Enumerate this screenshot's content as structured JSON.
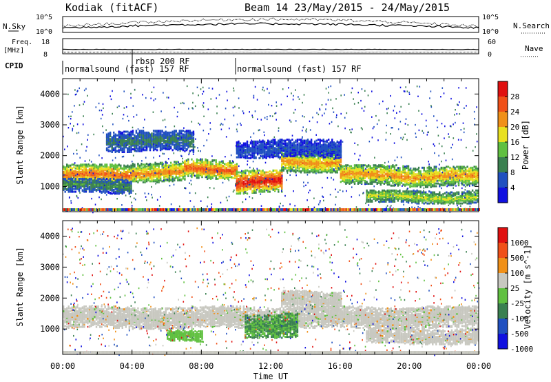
{
  "header": {
    "station": "Kodiak (fitACF)",
    "beam_date": "Beam 14 23/May/2015 - 24/May/2015"
  },
  "top_panels": {
    "nsky_label": "N.Sky",
    "nsky_ticks": [
      "10^5",
      "10^0"
    ],
    "nsearch_label": "N.Search",
    "nsearch_ticks": [
      "10^5",
      "10^0"
    ],
    "freq_label_1": "Freq.",
    "freq_label_2": "[MHz]",
    "freq_ticks": [
      "18",
      "8"
    ],
    "nave_label": "Nave",
    "nave_ticks": [
      "60",
      "0"
    ],
    "cpid_label": "CPID",
    "cpid_segments": [
      {
        "label": "normalsound (fast) 157 RF",
        "start_hour": 0
      },
      {
        "label": "rbsp 200 RF",
        "start_hour": 4
      },
      {
        "label": "normalsound (fast) 157 RF",
        "start_hour": 10
      }
    ]
  },
  "chart_data": [
    {
      "type": "heatmap",
      "name": "Power",
      "ylabel": "Slant Range [km]",
      "xlabel": "Time UT",
      "x_ticks": [
        "00:00",
        "04:00",
        "08:00",
        "12:00",
        "16:00",
        "20:00",
        "00:00"
      ],
      "x_range_hours": [
        0,
        24
      ],
      "y_ticks": [
        1000,
        2000,
        3000,
        4000
      ],
      "ylim": [
        180,
        4500
      ],
      "colorbar": {
        "label": "Power [dB]",
        "ticks": [
          "28",
          "24",
          "20",
          "16",
          "12",
          "8",
          "4"
        ],
        "colors": [
          "#1010e0",
          "#2050c0",
          "#3a8050",
          "#60c040",
          "#e8e020",
          "#f09018",
          "#f05018",
          "#e01010"
        ]
      },
      "bands": [
        {
          "start": 0,
          "end": 4,
          "center": 1400,
          "width": 350,
          "level": 0.78
        },
        {
          "start": 4,
          "end": 7,
          "center": 1500,
          "width": 330,
          "level": 0.74
        },
        {
          "start": 7,
          "end": 10,
          "center": 1600,
          "width": 320,
          "level": 0.82
        },
        {
          "start": 10,
          "end": 12.6,
          "center": 1180,
          "width": 380,
          "level": 0.96
        },
        {
          "start": 12.6,
          "end": 16,
          "center": 1850,
          "width": 360,
          "level": 0.72
        },
        {
          "start": 16,
          "end": 20,
          "center": 1400,
          "width": 340,
          "level": 0.72
        },
        {
          "start": 20,
          "end": 24,
          "center": 1350,
          "width": 340,
          "level": 0.7
        },
        {
          "start": 0,
          "end": 4,
          "center": 1050,
          "width": 250,
          "level": 0.35
        },
        {
          "start": 10,
          "end": 16,
          "center": 2250,
          "width": 300,
          "level": 0.2
        },
        {
          "start": 2.5,
          "end": 7.5,
          "center": 2500,
          "width": 350,
          "level": 0.3
        },
        {
          "start": 17.5,
          "end": 24,
          "center": 700,
          "width": 220,
          "level": 0.55
        }
      ]
    },
    {
      "type": "heatmap",
      "name": "Velocity",
      "ylabel": "Slant Range [km]",
      "xlabel": "Time UT",
      "x_ticks": [
        "00:00",
        "04:00",
        "08:00",
        "12:00",
        "16:00",
        "20:00",
        "00:00"
      ],
      "x_range_hours": [
        0,
        24
      ],
      "y_ticks": [
        1000,
        2000,
        3000,
        4000
      ],
      "ylim": [
        180,
        4500
      ],
      "colorbar": {
        "label": "Velocity [m s^-1]",
        "ticks": [
          "1000",
          "500",
          "100",
          "25",
          "-25",
          "-100",
          "-500",
          "-1000"
        ],
        "colors": [
          "#1010e0",
          "#2050c0",
          "#3a8050",
          "#60c040",
          "#c8c8c0",
          "#f09018",
          "#f05018",
          "#e01010"
        ]
      },
      "bands": [
        {
          "start": 0,
          "end": 24,
          "center": 1400,
          "width": 360,
          "vel": "ground"
        },
        {
          "start": 10.5,
          "end": 13.5,
          "center": 1150,
          "width": 400,
          "vel": "toward"
        },
        {
          "start": 6,
          "end": 8,
          "center": 800,
          "width": 200,
          "vel": "weak"
        },
        {
          "start": 12.6,
          "end": 16,
          "center": 1950,
          "width": 320,
          "vel": "ground"
        },
        {
          "start": 17.5,
          "end": 24,
          "center": 800,
          "width": 260,
          "vel": "ground"
        }
      ]
    }
  ],
  "x_axis": {
    "label": "Time UT",
    "ticks": [
      "00:00",
      "04:00",
      "08:00",
      "12:00",
      "16:00",
      "20:00",
      "00:00"
    ]
  }
}
